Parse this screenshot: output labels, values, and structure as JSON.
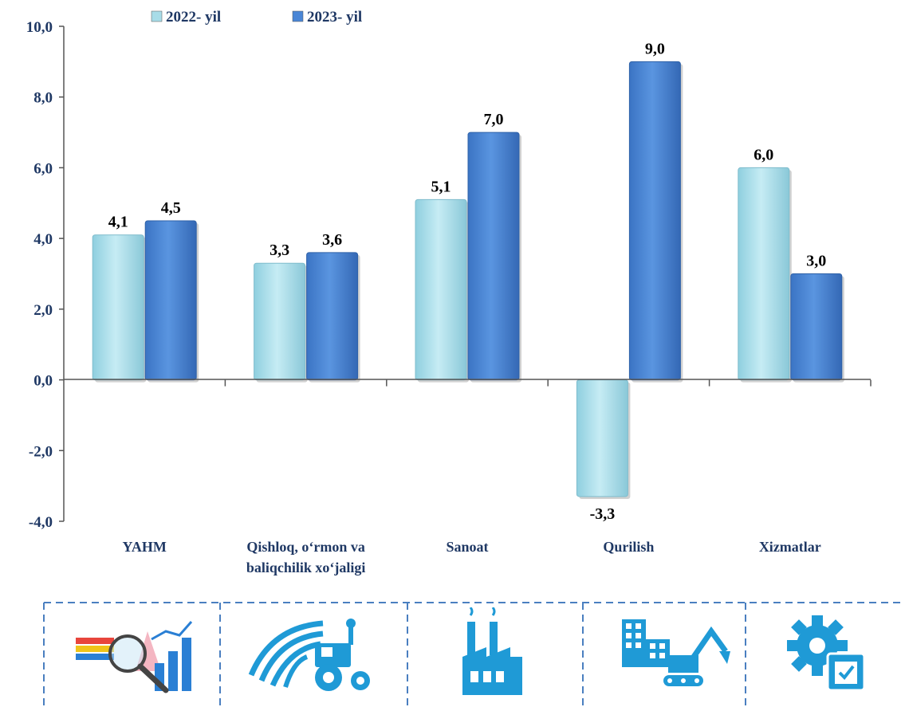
{
  "chart_data": {
    "type": "bar",
    "title": "",
    "xlabel": "",
    "ylabel": "",
    "ylim": [
      -4,
      10
    ],
    "yticks": [
      "10,0",
      "8,0",
      "6,0",
      "4,0",
      "2,0",
      "0,0",
      "-2,0",
      "-4,0"
    ],
    "ytick_values": [
      10,
      8,
      6,
      4,
      2,
      0,
      -2,
      -4
    ],
    "categories": [
      [
        "YAHM"
      ],
      [
        "Qishloq, o‘rmon va",
        "baliqchilik xo‘jaligi"
      ],
      [
        "Sanoat"
      ],
      [
        "Qurilish"
      ],
      [
        "Xizmatlar"
      ]
    ],
    "series": [
      {
        "name": "2022- yil",
        "values": [
          4.1,
          3.3,
          5.1,
          -3.3,
          6.0
        ],
        "labels": [
          "4,1",
          "3,3",
          "5,1",
          "-3,3",
          "6,0"
        ],
        "color": "#a8dce8"
      },
      {
        "name": "2023- yil",
        "values": [
          4.5,
          3.6,
          7.0,
          9.0,
          3.0
        ],
        "labels": [
          "4,5",
          "3,6",
          "7,0",
          "9,0",
          "3,0"
        ],
        "color": "#4a86d6"
      }
    ],
    "grid": false,
    "legend": "top-left"
  },
  "icons": [
    {
      "name": "yahm-analytics-icon"
    },
    {
      "name": "agriculture-tractor-icon"
    },
    {
      "name": "industry-factory-icon"
    },
    {
      "name": "construction-excavator-icon"
    },
    {
      "name": "services-gear-icon"
    }
  ],
  "colors": {
    "axis": "#555555",
    "dash": "#4a7fc0",
    "icon": "#1f9ad6"
  }
}
